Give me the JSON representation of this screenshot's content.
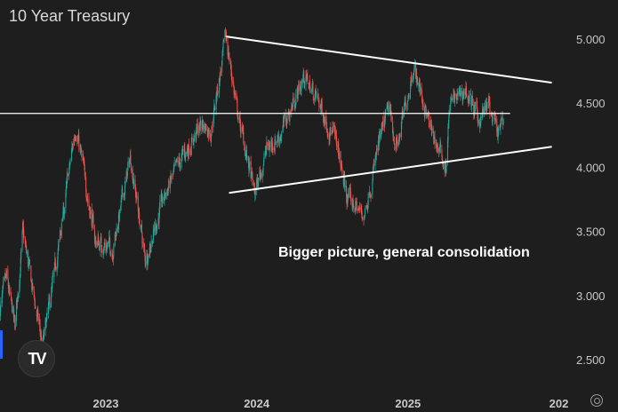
{
  "title": "10 Year Treasury",
  "annotation": "Bigger picture, general consolidation",
  "logo_text": "TV",
  "icons": {
    "logo": "tradingview-logo-icon",
    "settings": "settings-gear-icon"
  },
  "colors": {
    "up": "#26a69a",
    "down": "#ef5350",
    "background": "#1e1e1e",
    "trendline": "#ffffff"
  },
  "chart_data": {
    "type": "candlestick",
    "title": "10 Year Treasury",
    "y_ticks": [
      "5.000",
      "4.500",
      "4.000",
      "3.500",
      "3.000",
      "2.500"
    ],
    "x_ticks": [
      "2023",
      "2024",
      "2025",
      "202"
    ],
    "ylim": [
      2.35,
      5.1
    ],
    "xlim": [
      "2022-04-20",
      "2026-01-15"
    ],
    "horizontal_line": 4.42,
    "trendlines": [
      {
        "name": "upper",
        "points": [
          [
            "2023-10-19",
            5.02
          ],
          [
            "2025-12-15",
            4.66
          ]
        ]
      },
      {
        "name": "lower",
        "points": [
          [
            "2023-10-26",
            3.8
          ],
          [
            "2025-12-15",
            4.16
          ]
        ]
      }
    ],
    "anchors": [
      [
        "2022-04-20",
        2.9
      ],
      [
        "2022-05-06",
        3.12
      ],
      [
        "2022-05-26",
        2.75
      ],
      [
        "2022-06-14",
        3.48
      ],
      [
        "2022-08-01",
        2.6
      ],
      [
        "2022-09-01",
        3.2
      ],
      [
        "2022-10-20",
        4.33
      ],
      [
        "2022-12-07",
        3.42
      ],
      [
        "2023-01-18",
        3.37
      ],
      [
        "2023-03-02",
        4.08
      ],
      [
        "2023-04-06",
        3.28
      ],
      [
        "2023-05-26",
        3.8
      ],
      [
        "2023-07-06",
        4.08
      ],
      [
        "2023-08-21",
        4.34
      ],
      [
        "2023-09-12",
        4.29
      ],
      [
        "2023-10-19",
        5.02
      ],
      [
        "2023-11-14",
        4.45
      ],
      [
        "2023-12-27",
        3.79
      ],
      [
        "2024-01-25",
        4.14
      ],
      [
        "2024-02-29",
        4.27
      ],
      [
        "2024-04-25",
        4.71
      ],
      [
        "2024-05-31",
        4.5
      ],
      [
        "2024-07-12",
        4.19
      ],
      [
        "2024-08-05",
        3.78
      ],
      [
        "2024-09-16",
        3.62
      ],
      [
        "2024-10-21",
        4.15
      ],
      [
        "2024-11-15",
        4.45
      ],
      [
        "2024-12-06",
        4.15
      ],
      [
        "2025-01-14",
        4.8
      ],
      [
        "2025-02-27",
        4.27
      ],
      [
        "2025-04-04",
        4.0
      ],
      [
        "2025-04-11",
        4.49
      ],
      [
        "2025-05-21",
        4.6
      ],
      [
        "2025-06-20",
        4.37
      ],
      [
        "2025-07-15",
        4.48
      ],
      [
        "2025-08-05",
        4.25
      ],
      [
        "2025-08-20",
        4.33
      ]
    ]
  }
}
